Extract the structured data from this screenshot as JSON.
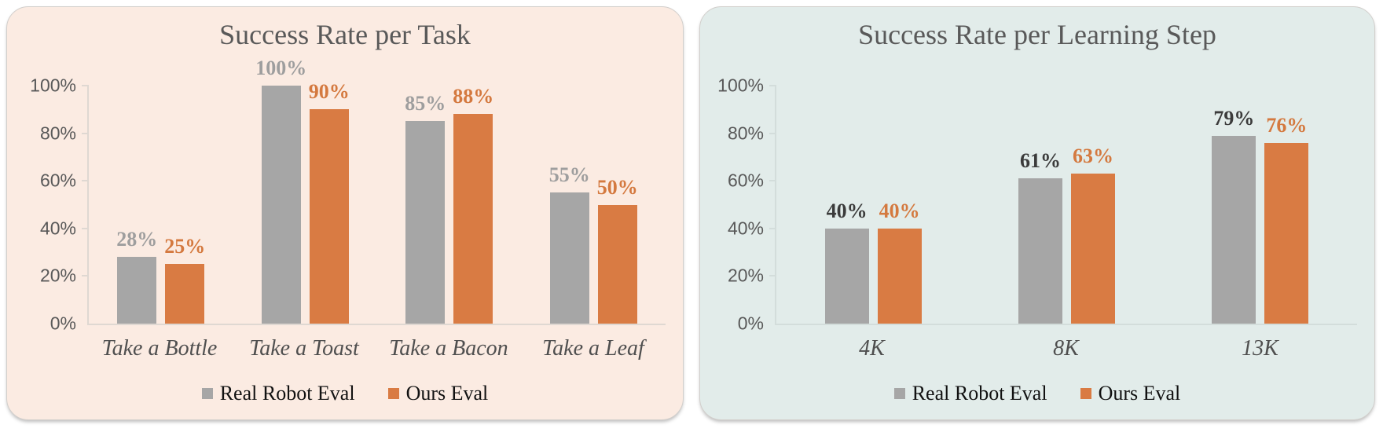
{
  "page": {
    "background": "#ffffff"
  },
  "chart_data": [
    {
      "type": "bar",
      "title": "Success Rate per Task",
      "background": "#FBEBE2",
      "axis_color": "#DFD8D2",
      "categories": [
        "Take a Bottle",
        "Take a Toast",
        "Take a Bacon",
        "Take a Leaf"
      ],
      "series": [
        {
          "name": "Real Robot Eval",
          "color": "#A6A6A6",
          "value_label_color": "#9E9E9E",
          "values": [
            28,
            100,
            85,
            55
          ]
        },
        {
          "name": "Ours Eval",
          "color": "#D97B43",
          "value_label_color": "#D4793F",
          "values": [
            25,
            90,
            88,
            50
          ]
        }
      ],
      "value_suffix": "%",
      "ylim": [
        0,
        100
      ],
      "y_ticks": [
        {
          "value": 0,
          "label": "0%"
        },
        {
          "value": 20,
          "label": "20%"
        },
        {
          "value": 40,
          "label": "40%"
        },
        {
          "value": 60,
          "label": "60%"
        },
        {
          "value": 80,
          "label": "80%"
        },
        {
          "value": 100,
          "label": "100%"
        }
      ],
      "grid": false,
      "legend_position": "bottom"
    },
    {
      "type": "bar",
      "title": "Success Rate per Learning Step",
      "background": "#E2ECEA",
      "axis_color": "#D3DDDB",
      "categories": [
        "4K",
        "8K",
        "13K"
      ],
      "series": [
        {
          "name": "Real Robot Eval",
          "color": "#A6A6A6",
          "value_label_color": "#3B3B3B",
          "values": [
            40,
            61,
            79
          ]
        },
        {
          "name": "Ours Eval",
          "color": "#D97B43",
          "value_label_color": "#D4793F",
          "values": [
            40,
            63,
            76
          ]
        }
      ],
      "value_suffix": "%",
      "ylim": [
        0,
        100
      ],
      "y_ticks": [
        {
          "value": 0,
          "label": "0%"
        },
        {
          "value": 20,
          "label": "20%"
        },
        {
          "value": 40,
          "label": "40%"
        },
        {
          "value": 60,
          "label": "60%"
        },
        {
          "value": 80,
          "label": "80%"
        },
        {
          "value": 100,
          "label": "100%"
        }
      ],
      "grid": false,
      "legend_position": "bottom"
    }
  ]
}
